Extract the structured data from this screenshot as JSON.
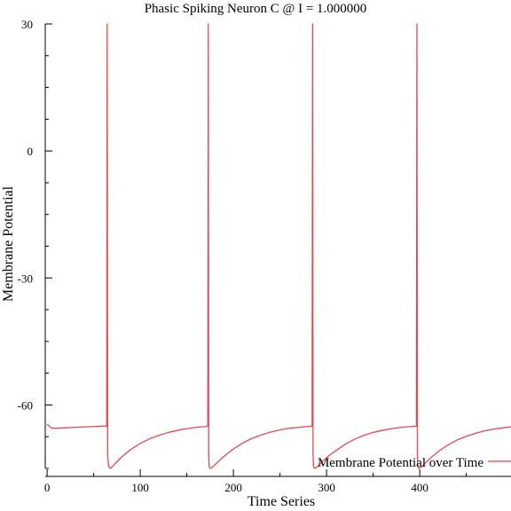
{
  "chart_data": {
    "type": "line",
    "title": "Phasic Spiking Neuron C @ I = 1.000000",
    "xlabel": "Time Series",
    "ylabel": "Membrane Potential",
    "xlim": [
      -2,
      498
    ],
    "ylim": [
      -75,
      30
    ],
    "x_ticks": [
      0,
      100,
      200,
      300,
      400
    ],
    "x_tick_labels": [
      "0",
      "100",
      "200",
      "300",
      "400"
    ],
    "y_ticks": [
      -60,
      -30,
      0,
      30
    ],
    "y_tick_labels": [
      "-60",
      "-30",
      "0",
      "30"
    ],
    "grid": false,
    "legend": "bottom-right",
    "series": [
      {
        "name": "Membrane Potential over Time",
        "color": "#e8474f",
        "x": [
          0,
          3,
          6,
          10,
          20,
          30,
          40,
          50,
          60,
          63,
          64,
          64.5,
          65,
          66,
          68,
          70,
          75,
          80,
          90,
          100,
          110,
          120,
          130,
          140,
          150,
          160,
          170,
          172.5,
          173,
          173.5,
          174,
          175,
          177,
          180,
          185,
          190,
          200,
          210,
          220,
          230,
          240,
          250,
          260,
          270,
          280,
          284.5,
          285,
          285.5,
          286,
          287,
          289,
          292,
          297,
          302,
          310,
          320,
          330,
          340,
          350,
          360,
          370,
          380,
          390,
          396.5,
          397,
          397.5,
          398,
          399,
          401,
          404,
          409,
          414,
          420,
          430,
          440,
          450,
          460,
          470,
          480,
          490,
          498
        ],
        "y": [
          -64.5,
          -65.2,
          -65.5,
          -65.5,
          -65.4,
          -65.3,
          -65.2,
          -65.1,
          -65.0,
          -65.0,
          -65.0,
          30,
          -72,
          -74.5,
          -75.0,
          -74.6,
          -73.4,
          -72.3,
          -70.5,
          -69.1,
          -68.0,
          -67.2,
          -66.5,
          -66.0,
          -65.6,
          -65.3,
          -65.1,
          -65.0,
          30,
          -72,
          -74.5,
          -75.0,
          -74.8,
          -74.2,
          -73.1,
          -72.1,
          -70.4,
          -69.0,
          -67.9,
          -67.1,
          -66.4,
          -65.9,
          -65.5,
          -65.3,
          -65.1,
          -65.0,
          30,
          -72,
          -74.5,
          -75.0,
          -74.8,
          -74.2,
          -73.1,
          -72.1,
          -70.8,
          -69.3,
          -68.1,
          -67.2,
          -66.5,
          -66.0,
          -65.6,
          -65.3,
          -65.1,
          -65.0,
          30,
          -72,
          -74.5,
          -75.0,
          -74.8,
          -74.2,
          -73.1,
          -72.1,
          -71.0,
          -69.5,
          -68.3,
          -67.4,
          -66.7,
          -66.1,
          -65.7,
          -65.4,
          -65.2
        ]
      }
    ]
  }
}
